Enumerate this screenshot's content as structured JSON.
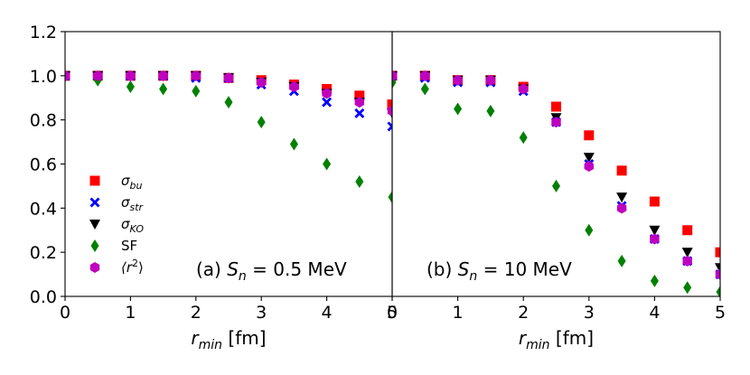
{
  "chart_data": [
    {
      "type": "scatter",
      "panel": "a",
      "annotation": "(a) S_n = 0.5 MeV",
      "annotation_prefix": "(a) ",
      "annotation_var": "S",
      "annotation_sub": "n",
      "annotation_suffix": " = 0.5 MeV",
      "xlabel": "r_min [fm]",
      "xlabel_var": "r",
      "xlabel_sub": "min",
      "xlabel_unit": " [fm]",
      "ylabel": "",
      "xlim": [
        0,
        5
      ],
      "ylim": [
        0,
        1.2
      ],
      "xticks": [
        "0",
        "1",
        "2",
        "3",
        "4",
        "5"
      ],
      "yticks": [
        "0.0",
        "0.2",
        "0.4",
        "0.6",
        "0.8",
        "1.0",
        "1.2"
      ],
      "x": [
        0,
        0.5,
        1,
        1.5,
        2,
        2.5,
        3,
        3.5,
        4,
        4.5,
        5
      ],
      "series": [
        {
          "name": "σ_bu",
          "values": [
            1.0,
            1.0,
            1.0,
            1.0,
            1.0,
            0.99,
            0.98,
            0.96,
            0.94,
            0.91,
            0.87
          ]
        },
        {
          "name": "σ_str",
          "values": [
            1.0,
            1.0,
            1.0,
            1.0,
            0.99,
            0.99,
            0.96,
            0.93,
            0.88,
            0.83,
            0.77
          ]
        },
        {
          "name": "σ_KO",
          "values": [
            1.0,
            1.0,
            1.0,
            1.0,
            1.0,
            0.99,
            0.97,
            0.95,
            0.92,
            0.88,
            0.83
          ]
        },
        {
          "name": "SF",
          "values": [
            1.0,
            0.98,
            0.95,
            0.94,
            0.93,
            0.88,
            0.79,
            0.69,
            0.6,
            0.52,
            0.45
          ]
        },
        {
          "name": "⟨r²⟩",
          "values": [
            1.0,
            1.0,
            1.0,
            1.0,
            1.0,
            0.99,
            0.97,
            0.95,
            0.92,
            0.88,
            0.84
          ]
        }
      ]
    },
    {
      "type": "scatter",
      "panel": "b",
      "annotation": "(b) S_n = 10 MeV",
      "annotation_prefix": "(b) ",
      "annotation_var": "S",
      "annotation_sub": "n",
      "annotation_suffix": " = 10 MeV",
      "xlabel": "r_min [fm]",
      "xlabel_var": "r",
      "xlabel_sub": "min",
      "xlabel_unit": " [fm]",
      "ylabel": "",
      "xlim": [
        0,
        5
      ],
      "ylim": [
        0,
        1.2
      ],
      "xticks": [
        "0",
        "1",
        "2",
        "3",
        "4",
        "5"
      ],
      "x": [
        0,
        0.5,
        1,
        1.5,
        2,
        2.5,
        3,
        3.5,
        4,
        4.5,
        5
      ],
      "series": [
        {
          "name": "σ_bu",
          "values": [
            1.0,
            1.0,
            0.98,
            0.98,
            0.95,
            0.86,
            0.73,
            0.57,
            0.43,
            0.3,
            0.2
          ]
        },
        {
          "name": "σ_str",
          "values": [
            1.0,
            0.99,
            0.97,
            0.97,
            0.93,
            0.79,
            0.6,
            0.41,
            0.26,
            0.16,
            0.1
          ]
        },
        {
          "name": "σ_KO",
          "values": [
            1.0,
            1.0,
            0.98,
            0.98,
            0.94,
            0.81,
            0.63,
            0.45,
            0.3,
            0.2,
            0.13
          ]
        },
        {
          "name": "SF",
          "values": [
            0.97,
            0.94,
            0.85,
            0.84,
            0.72,
            0.5,
            0.3,
            0.16,
            0.07,
            0.04,
            0.02
          ]
        },
        {
          "name": "⟨r²⟩",
          "values": [
            1.0,
            1.0,
            0.98,
            0.98,
            0.94,
            0.79,
            0.59,
            0.4,
            0.26,
            0.16,
            0.1
          ]
        }
      ]
    }
  ],
  "legend": {
    "placement": "left",
    "entries": [
      {
        "series": "σ_bu",
        "main": "σ",
        "sub": "bu",
        "color": "#ff0000",
        "marker": "square"
      },
      {
        "series": "σ_str",
        "main": "σ",
        "sub": "str",
        "color": "#0000ff",
        "marker": "x"
      },
      {
        "series": "σ_KO",
        "main": "σ",
        "sub": "KO",
        "color": "#000000",
        "marker": "triangle-down"
      },
      {
        "series": "SF",
        "main": "SF",
        "sub": "",
        "color": "#008000",
        "marker": "diamond"
      },
      {
        "series": "⟨r²⟩",
        "main": "⟨r",
        "sup": "2",
        "close": "⟩",
        "color": "#bf00bf",
        "marker": "hexagon"
      }
    ]
  }
}
